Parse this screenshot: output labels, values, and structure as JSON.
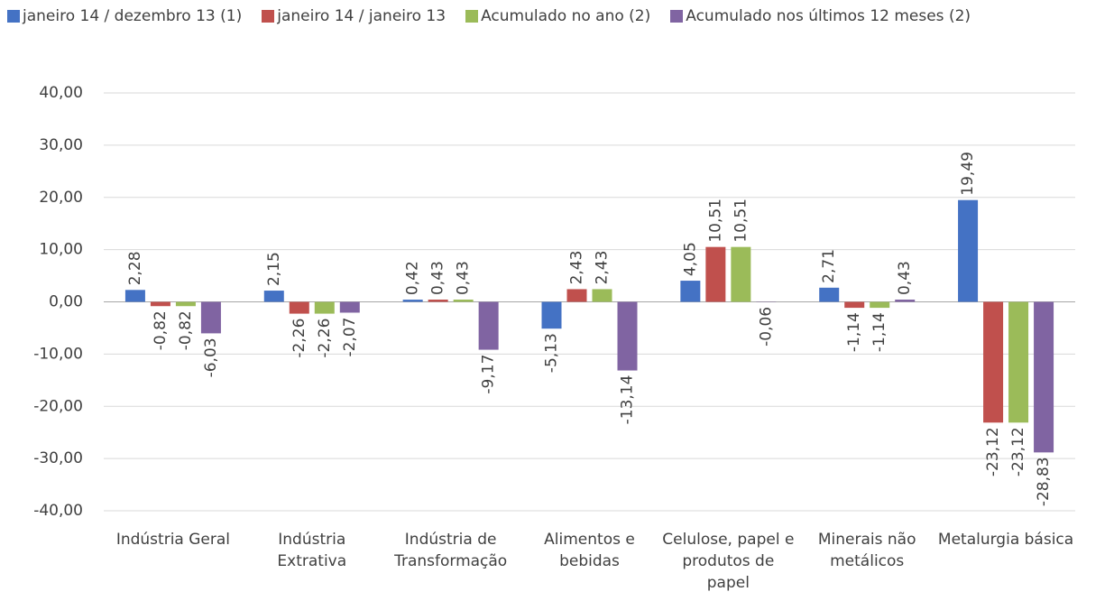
{
  "chart_data": {
    "type": "bar",
    "categories": [
      "Indústria Geral",
      "Indústria Extrativa",
      "Indústria de Transformação",
      "Alimentos e bebidas",
      "Celulose, papel e produtos de papel",
      "Minerais não metálicos",
      "Metalurgia básica"
    ],
    "series": [
      {
        "name": "janeiro 14 / dezembro 13 (1)",
        "color": "#4472c4",
        "values": [
          2.28,
          2.15,
          0.42,
          -5.13,
          4.05,
          2.71,
          19.49
        ],
        "value_labels": [
          "2,28",
          "2,15",
          "0,42",
          "-5,13",
          "4,05",
          "2,71",
          "19,49"
        ]
      },
      {
        "name": "janeiro 14 / janeiro 13",
        "color": "#c0504d",
        "values": [
          -0.82,
          -2.26,
          0.43,
          2.43,
          10.51,
          -1.14,
          -23.12
        ],
        "value_labels": [
          "-0,82",
          "-2,26",
          "0,43",
          "2,43",
          "10,51",
          "-1,14",
          "-23,12"
        ]
      },
      {
        "name": "Acumulado no ano (2)",
        "color": "#9bbb59",
        "values": [
          -0.82,
          -2.26,
          0.43,
          2.43,
          10.51,
          -1.14,
          -23.12
        ],
        "value_labels": [
          "-0,82",
          "-2,26",
          "0,43",
          "2,43",
          "10,51",
          "-1,14",
          "-23,12"
        ]
      },
      {
        "name": "Acumulado nos últimos 12 meses (2)",
        "color": "#8064a2",
        "values": [
          -6.03,
          -2.07,
          -9.17,
          -13.14,
          -0.06,
          0.43,
          -28.83
        ],
        "value_labels": [
          "-6,03",
          "-2,07",
          "-9,17",
          "-13,14",
          "-0,06",
          "0,43",
          "-28,83"
        ]
      }
    ],
    "ylim": [
      -40,
      40
    ],
    "yticks": [
      {
        "value": -40,
        "label": "-40,00"
      },
      {
        "value": -30,
        "label": "-30,00"
      },
      {
        "value": -20,
        "label": "-20,00"
      },
      {
        "value": -10,
        "label": "-10,00"
      },
      {
        "value": 0,
        "label": "0,00"
      },
      {
        "value": 10,
        "label": "10,00"
      },
      {
        "value": 20,
        "label": "20,00"
      },
      {
        "value": 30,
        "label": "30,00"
      },
      {
        "value": 40,
        "label": "40,00"
      }
    ],
    "grid": true,
    "legend": "top"
  }
}
